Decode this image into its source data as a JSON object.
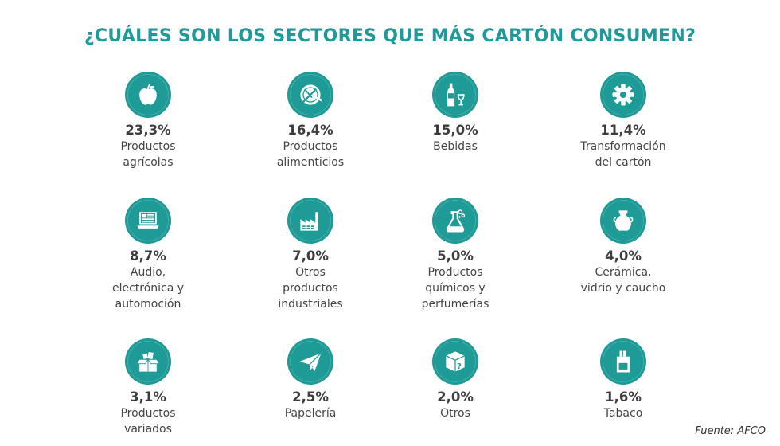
{
  "title": "¿CUÁLES SON LOS SECTORES QUE MÁS CARTÓN CONSUMEN?",
  "colors": {
    "accent": "#1d9a99",
    "icon_bg": "#1e9a97",
    "text": "#3d3d3d"
  },
  "sectors": [
    {
      "percent": "23,3%",
      "label": "Productos\nagrícolas",
      "icon": "apple-icon"
    },
    {
      "percent": "16,4%",
      "label": "Productos\nalimenticios",
      "icon": "plate-cutlery-icon"
    },
    {
      "percent": "15,0%",
      "label": "Bebidas",
      "icon": "bottle-glass-icon"
    },
    {
      "percent": "11,4%",
      "label": "Transformación\ndel cartón",
      "icon": "gear-icon"
    },
    {
      "percent": "8,7%",
      "label": "Audio,\nelectrónica y\nautomoción",
      "icon": "laptop-icon"
    },
    {
      "percent": "7,0%",
      "label": "Otros\nproductos\nindustriales",
      "icon": "factory-icon"
    },
    {
      "percent": "5,0%",
      "label": "Productos\nquímicos y\nperfumerías",
      "icon": "flask-icon"
    },
    {
      "percent": "4,0%",
      "label": "Cerámica,\nvidrio y caucho",
      "icon": "vase-icon"
    },
    {
      "percent": "3,1%",
      "label": "Productos\nvariados",
      "icon": "open-box-icon"
    },
    {
      "percent": "2,5%",
      "label": "Papelería",
      "icon": "paper-plane-icon"
    },
    {
      "percent": "2,0%",
      "label": "Otros",
      "icon": "question-box-icon"
    },
    {
      "percent": "1,6%",
      "label": "Tabaco",
      "icon": "cigarette-pack-icon"
    }
  ],
  "source": "Fuente: AFCO"
}
